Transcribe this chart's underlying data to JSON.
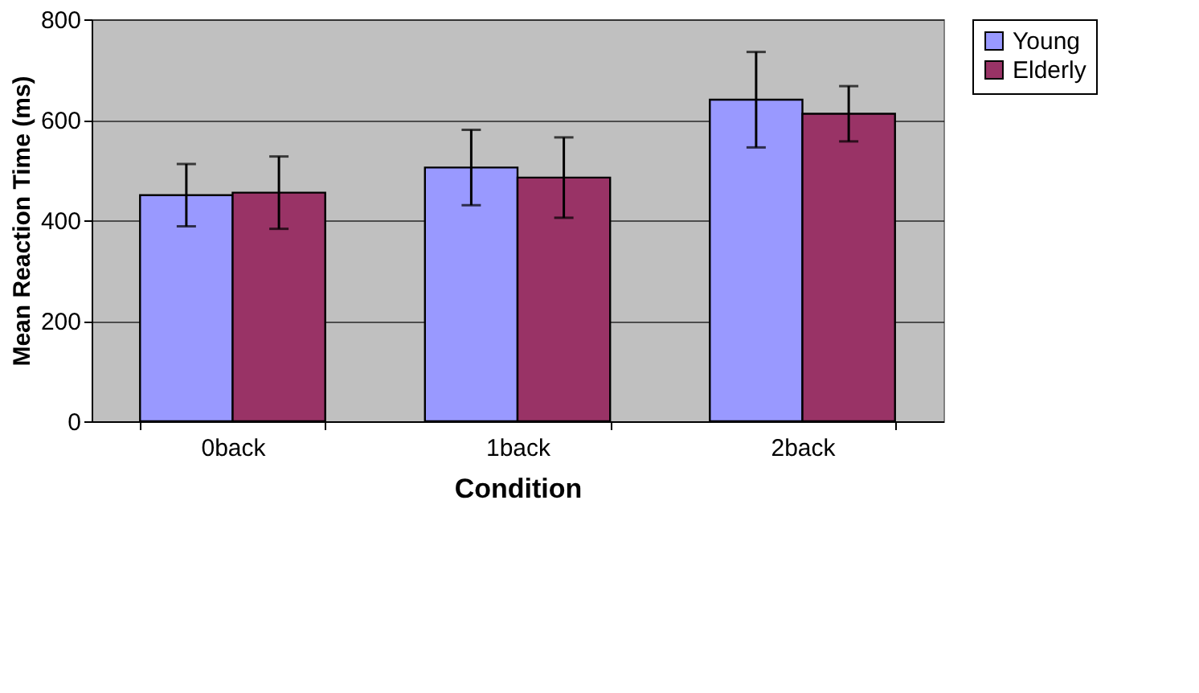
{
  "chart_data": {
    "type": "bar",
    "xlabel": "Condition",
    "ylabel": "Mean Reaction Time (ms)",
    "categories": [
      "0back",
      "1back",
      "2back"
    ],
    "series": [
      {
        "name": "Young",
        "color": "#9999ff",
        "values": [
          450,
          505,
          640
        ],
        "errors": [
          62,
          75,
          95
        ]
      },
      {
        "name": "Elderly",
        "color": "#993366",
        "values": [
          455,
          485,
          612
        ],
        "errors": [
          72,
          80,
          55
        ]
      }
    ],
    "ylim": [
      0,
      800
    ],
    "yticks": [
      0,
      200,
      400,
      600,
      800
    ],
    "grid": "y",
    "legend": "right"
  }
}
